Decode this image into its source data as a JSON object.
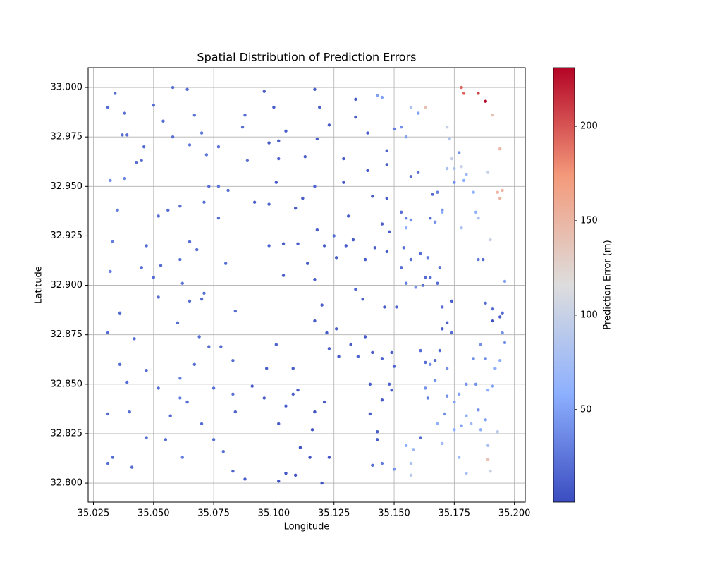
{
  "chart_data": {
    "type": "scatter",
    "title": "Spatial Distribution of Prediction Errors",
    "xlabel": "Longitude",
    "ylabel": "Latitude",
    "xlim": [
      35.0228,
      35.2045
    ],
    "ylim": [
      32.7904,
      33.01
    ],
    "xticks": [
      35.025,
      {
        "value": 35.05,
        "label": "35.050"
      },
      35.075,
      {
        "value": 35.1,
        "label": "35.100"
      },
      35.125,
      {
        "value": 35.15,
        "label": "35.150"
      },
      35.175,
      {
        "value": 35.2,
        "label": "35.200"
      }
    ],
    "yticks": [
      {
        "value": 32.8,
        "label": "32.800"
      },
      32.825,
      {
        "value": 32.85,
        "label": "32.850"
      },
      32.875,
      {
        "value": 32.9,
        "label": "32.900"
      },
      32.925,
      {
        "value": 32.95,
        "label": "32.950"
      },
      32.975,
      {
        "value": 33,
        "label": "33.000"
      }
    ],
    "grid": true,
    "colormap": [
      "#3b4cc0",
      "#8db0fe",
      "#dddddd",
      "#f49a7b",
      "#b40426"
    ],
    "colorbar": {
      "label": "Prediction Error (m)",
      "lim": [
        1,
        231
      ],
      "ticks": [
        50,
        100,
        150,
        200
      ]
    },
    "x": [
      35.031,
      35.034,
      35.038,
      35.037,
      35.039,
      35.032,
      35.038,
      35.035,
      35.033,
      35.032,
      35.043,
      35.046,
      35.045,
      35.047,
      35.045,
      35.031,
      35.036,
      35.039,
      35.036,
      35.042,
      35.047,
      35.047,
      35.04,
      35.031,
      35.031,
      35.033,
      35.041,
      35.055,
      35.057,
      35.052,
      35.062,
      35.061,
      35.061,
      35.05,
      35.054,
      35.058,
      35.058,
      35.064,
      35.067,
      35.07,
      35.065,
      35.072,
      35.061,
      35.056,
      35.052,
      35.053,
      35.061,
      35.065,
      35.068,
      35.071,
      35.071,
      35.073,
      35.05,
      35.052,
      35.062,
      35.065,
      35.07,
      35.069,
      35.06,
      35.067,
      35.073,
      35.07,
      35.064,
      35.075,
      35.075,
      35.079,
      35.077,
      35.077,
      35.081,
      35.077,
      35.08,
      35.084,
      35.078,
      35.083,
      35.083,
      35.084,
      35.083,
      35.088,
      35.091,
      35.096,
      35.097,
      35.101,
      35.102,
      35.105,
      35.108,
      35.11,
      35.108,
      35.111,
      35.102,
      35.105,
      35.109,
      35.115,
      35.12,
      35.117,
      35.116,
      35.123,
      35.087,
      35.088,
      35.089,
      35.096,
      35.1,
      35.105,
      35.102,
      35.101,
      35.102,
      35.098,
      35.092,
      35.098,
      35.109,
      35.112,
      35.113,
      35.117,
      35.119,
      35.118,
      35.117,
      35.121,
      35.117,
      35.12,
      35.098,
      35.104,
      35.104,
      35.11,
      35.114,
      35.118,
      35.117,
      35.122,
      35.123,
      35.121,
      35.123,
      35.129,
      35.129,
      35.13,
      35.131,
      35.133,
      35.134,
      35.134,
      35.125,
      35.126,
      35.126,
      35.132,
      35.127,
      35.135,
      35.138,
      35.134,
      35.137,
      35.139,
      35.139,
      35.141,
      35.145,
      35.147,
      35.147,
      35.148,
      35.147,
      35.142,
      35.138,
      35.141,
      35.14,
      35.14,
      35.141,
      35.143,
      35.143,
      35.145,
      35.148,
      35.145,
      35.145,
      35.146,
      35.147,
      35.143,
      35.145,
      35.149,
      35.15,
      35.151,
      35.149,
      35.15,
      35.15,
      35.153,
      35.155,
      35.157,
      35.16,
      35.163,
      35.157,
      35.16,
      35.153,
      35.155,
      35.155,
      35.157,
      35.157,
      35.161,
      35.155,
      35.153,
      35.154,
      35.159,
      35.162,
      35.163,
      35.164,
      35.165,
      35.167,
      35.166,
      35.168,
      35.17,
      35.17,
      35.172,
      35.173,
      35.174,
      35.172,
      35.175,
      35.177,
      35.179,
      35.175,
      35.18,
      35.178,
      35.178,
      35.169,
      35.165,
      35.168,
      35.17,
      35.172,
      35.17,
      35.174,
      35.174,
      35.163,
      35.161,
      35.167,
      35.169,
      35.167,
      35.165,
      35.164,
      35.163,
      35.161,
      35.155,
      35.158,
      35.157,
      35.157,
      35.168,
      35.17,
      35.171,
      35.172,
      35.172,
      35.175,
      35.177,
      35.178,
      35.18,
      35.175,
      35.177,
      35.18,
      35.182,
      35.185,
      35.186,
      35.188,
      35.189,
      35.193,
      35.191,
      35.189,
      35.189,
      35.19,
      35.18,
      35.184,
      35.183,
      35.186,
      35.188,
      35.192,
      35.194,
      35.195,
      35.191,
      35.191,
      35.194,
      35.195,
      35.188,
      35.187,
      35.185,
      35.183,
      35.184,
      35.185,
      35.193,
      35.194,
      35.195,
      35.196,
      35.196,
      35.189,
      35.19,
      35.194,
      35.191,
      35.178,
      35.179,
      35.185,
      35.188
    ],
    "y": [
      32.99,
      32.997,
      32.987,
      32.976,
      32.976,
      32.953,
      32.954,
      32.938,
      32.922,
      32.907,
      32.962,
      32.97,
      32.963,
      32.92,
      32.909,
      32.876,
      32.86,
      32.851,
      32.886,
      32.873,
      32.857,
      32.823,
      32.836,
      32.835,
      32.81,
      32.813,
      32.808,
      32.822,
      32.834,
      32.848,
      32.813,
      32.843,
      32.853,
      32.991,
      32.983,
      32.975,
      33.0,
      32.999,
      32.986,
      32.977,
      32.971,
      32.966,
      32.94,
      32.938,
      32.935,
      32.91,
      32.913,
      32.922,
      32.918,
      32.896,
      32.942,
      32.95,
      32.904,
      32.894,
      32.901,
      32.892,
      32.893,
      32.874,
      32.881,
      32.86,
      32.869,
      32.83,
      32.841,
      32.848,
      32.822,
      32.816,
      32.97,
      32.95,
      32.948,
      32.934,
      32.911,
      32.887,
      32.869,
      32.862,
      32.845,
      32.836,
      32.806,
      32.802,
      32.849,
      32.843,
      32.858,
      32.87,
      32.83,
      32.839,
      32.845,
      32.847,
      32.858,
      32.818,
      32.801,
      32.805,
      32.804,
      32.813,
      32.8,
      32.836,
      32.827,
      32.813,
      32.98,
      32.986,
      32.963,
      32.998,
      32.99,
      32.978,
      32.964,
      32.952,
      32.973,
      32.972,
      32.942,
      32.941,
      32.939,
      32.944,
      32.965,
      32.999,
      32.99,
      32.974,
      32.95,
      32.92,
      32.903,
      32.89,
      32.92,
      32.921,
      32.905,
      32.921,
      32.911,
      32.928,
      32.882,
      32.876,
      32.868,
      32.841,
      32.981,
      32.964,
      32.952,
      32.92,
      32.935,
      32.923,
      32.994,
      32.985,
      32.925,
      32.914,
      32.878,
      32.87,
      32.864,
      32.864,
      32.874,
      32.898,
      32.893,
      32.958,
      32.977,
      32.945,
      32.931,
      32.944,
      32.961,
      32.927,
      32.917,
      32.919,
      32.913,
      32.866,
      32.85,
      32.835,
      32.809,
      32.826,
      32.822,
      32.842,
      32.85,
      32.81,
      32.863,
      32.889,
      32.968,
      32.996,
      32.995,
      32.866,
      32.859,
      32.889,
      32.847,
      32.807,
      32.979,
      32.98,
      32.975,
      32.99,
      32.987,
      32.99,
      32.955,
      32.957,
      32.937,
      32.934,
      32.929,
      32.933,
      32.913,
      32.916,
      32.901,
      32.909,
      32.919,
      32.899,
      32.9,
      32.904,
      32.914,
      32.934,
      32.932,
      32.946,
      32.947,
      32.938,
      32.937,
      32.98,
      32.974,
      32.964,
      32.959,
      32.959,
      32.967,
      32.953,
      32.952,
      32.956,
      32.96,
      32.929,
      32.909,
      32.904,
      32.901,
      32.889,
      32.881,
      32.878,
      32.892,
      32.876,
      32.861,
      32.867,
      32.862,
      32.867,
      32.852,
      32.86,
      32.843,
      32.848,
      32.823,
      32.819,
      32.817,
      32.81,
      32.804,
      32.83,
      32.82,
      32.835,
      32.844,
      32.858,
      32.841,
      32.845,
      32.829,
      32.834,
      32.827,
      32.813,
      32.805,
      32.83,
      32.837,
      32.827,
      32.832,
      32.847,
      32.826,
      32.849,
      32.812,
      32.819,
      32.806,
      32.85,
      32.85,
      32.863,
      32.87,
      32.863,
      32.858,
      32.862,
      32.876,
      32.888,
      32.882,
      32.884,
      32.886,
      32.891,
      32.913,
      32.913,
      32.947,
      32.937,
      32.934,
      32.947,
      32.944,
      32.948,
      32.902,
      32.871,
      32.957,
      32.923,
      32.969,
      32.986,
      33.0,
      32.997,
      32.997,
      32.993
    ],
    "error": [
      20,
      20,
      20,
      20,
      20,
      40,
      30,
      30,
      30,
      30,
      20,
      20,
      20,
      20,
      20,
      20,
      20,
      20,
      20,
      20,
      20,
      20,
      20,
      20,
      20,
      20,
      20,
      20,
      20,
      20,
      30,
      30,
      30,
      20,
      20,
      20,
      20,
      20,
      25,
      25,
      25,
      25,
      20,
      20,
      20,
      20,
      20,
      20,
      20,
      20,
      20,
      20,
      20,
      20,
      25,
      20,
      20,
      20,
      20,
      20,
      20,
      20,
      20,
      20,
      20,
      20,
      20,
      25,
      20,
      20,
      20,
      20,
      20,
      20,
      20,
      15,
      15,
      10,
      10,
      10,
      10,
      15,
      10,
      10,
      10,
      10,
      10,
      5,
      5,
      5,
      5,
      5,
      5,
      5,
      5,
      5,
      20,
      20,
      20,
      10,
      10,
      10,
      15,
      10,
      10,
      10,
      10,
      15,
      10,
      10,
      10,
      10,
      10,
      10,
      15,
      10,
      10,
      10,
      15,
      10,
      10,
      10,
      10,
      10,
      10,
      10,
      10,
      10,
      10,
      10,
      10,
      10,
      10,
      10,
      10,
      10,
      20,
      10,
      10,
      10,
      10,
      15,
      10,
      15,
      10,
      10,
      10,
      10,
      10,
      10,
      10,
      10,
      10,
      10,
      10,
      10,
      10,
      10,
      20,
      10,
      10,
      10,
      15,
      30,
      15,
      10,
      10,
      50,
      50,
      10,
      15,
      15,
      10,
      40,
      30,
      40,
      50,
      80,
      50,
      140,
      20,
      20,
      20,
      30,
      60,
      40,
      20,
      20,
      30,
      20,
      20,
      40,
      20,
      20,
      30,
      20,
      40,
      20,
      30,
      40,
      60,
      100,
      80,
      100,
      80,
      80,
      40,
      60,
      40,
      70,
      100,
      80,
      20,
      20,
      20,
      20,
      10,
      10,
      10,
      20,
      20,
      20,
      20,
      20,
      40,
      40,
      30,
      40,
      20,
      60,
      70,
      80,
      90,
      60,
      70,
      40,
      40,
      40,
      50,
      50,
      50,
      60,
      60,
      70,
      80,
      70,
      40,
      60,
      50,
      60,
      90,
      50,
      140,
      80,
      100,
      40,
      40,
      40,
      40,
      40,
      60,
      60,
      40,
      20,
      5,
      10,
      20,
      20,
      20,
      30,
      60,
      60,
      80,
      150,
      150,
      150,
      50,
      40,
      100,
      100,
      150,
      140,
      195,
      195,
      205,
      231
    ]
  }
}
